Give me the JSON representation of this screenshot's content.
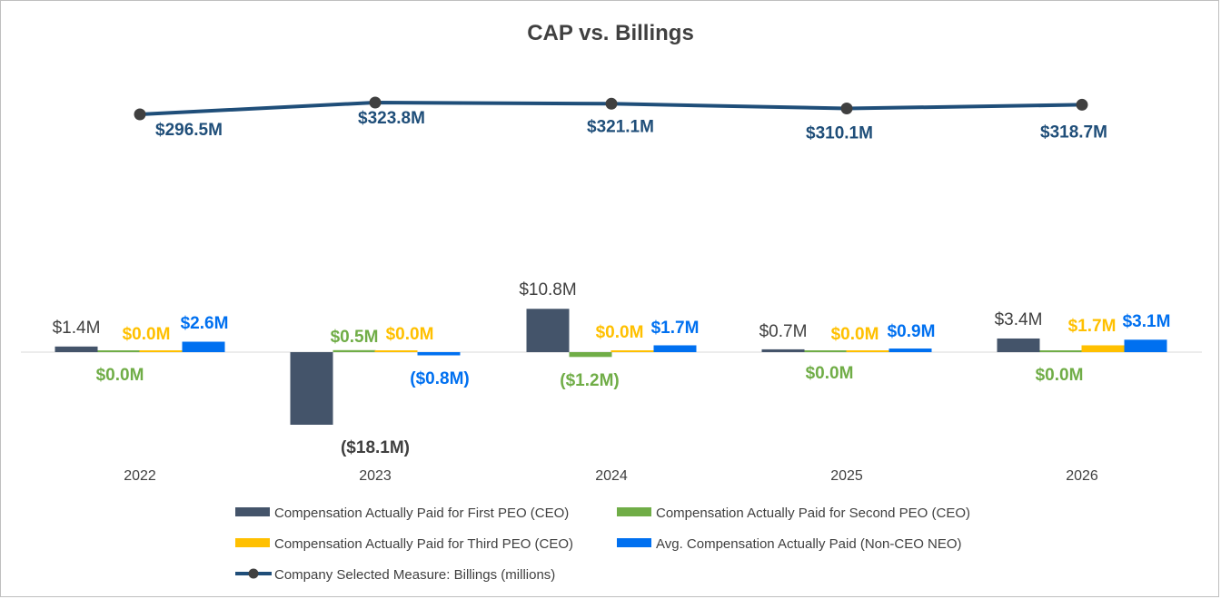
{
  "chart_data": {
    "type": "bar",
    "title": "CAP vs. Billings",
    "categories": [
      "2022",
      "2023",
      "2024",
      "2025",
      "2026"
    ],
    "series": [
      {
        "name": "Compensation Actually Paid for First PEO (CEO)",
        "kind": "bar",
        "color": "#44546a",
        "values": [
          1.4,
          -18.1,
          10.8,
          0.7,
          3.4
        ],
        "labels": [
          "$1.4M",
          "($18.1M)",
          "$10.8M",
          "$0.7M",
          "$3.4M"
        ]
      },
      {
        "name": "Compensation Actually Paid for Second PEO (CEO)",
        "kind": "bar",
        "color": "#70ad47",
        "values": [
          0.0,
          0.5,
          -1.2,
          0.0,
          0.0
        ],
        "labels": [
          "$0.0M",
          "$0.5M",
          "($1.2M)",
          "$0.0M",
          "$0.0M"
        ]
      },
      {
        "name": "Compensation Actually Paid for Third PEO (CEO)",
        "kind": "bar",
        "color": "#ffc000",
        "values": [
          0.0,
          0.0,
          0.0,
          0.0,
          1.7
        ],
        "labels": [
          "$0.0M",
          "$0.0M",
          "$0.0M",
          "$0.0M",
          "$1.7M"
        ]
      },
      {
        "name": "Avg. Compensation Actually Paid (Non-CEO NEO)",
        "kind": "bar",
        "color": "#0070f0",
        "values": [
          2.6,
          -0.8,
          1.7,
          0.9,
          3.1
        ],
        "labels": [
          "$2.6M",
          "($0.8M)",
          "$1.7M",
          "$0.9M",
          "$3.1M"
        ]
      },
      {
        "name": "Company Selected Measure: Billings (millions)",
        "kind": "line",
        "color": "#1f4e79",
        "values": [
          296.5,
          323.8,
          321.1,
          310.1,
          318.7
        ],
        "labels": [
          "$296.5M",
          "$323.8M",
          "$321.1M",
          "$310.1M",
          "$318.7M"
        ]
      }
    ],
    "legend_position": "bottom",
    "grid": false
  }
}
